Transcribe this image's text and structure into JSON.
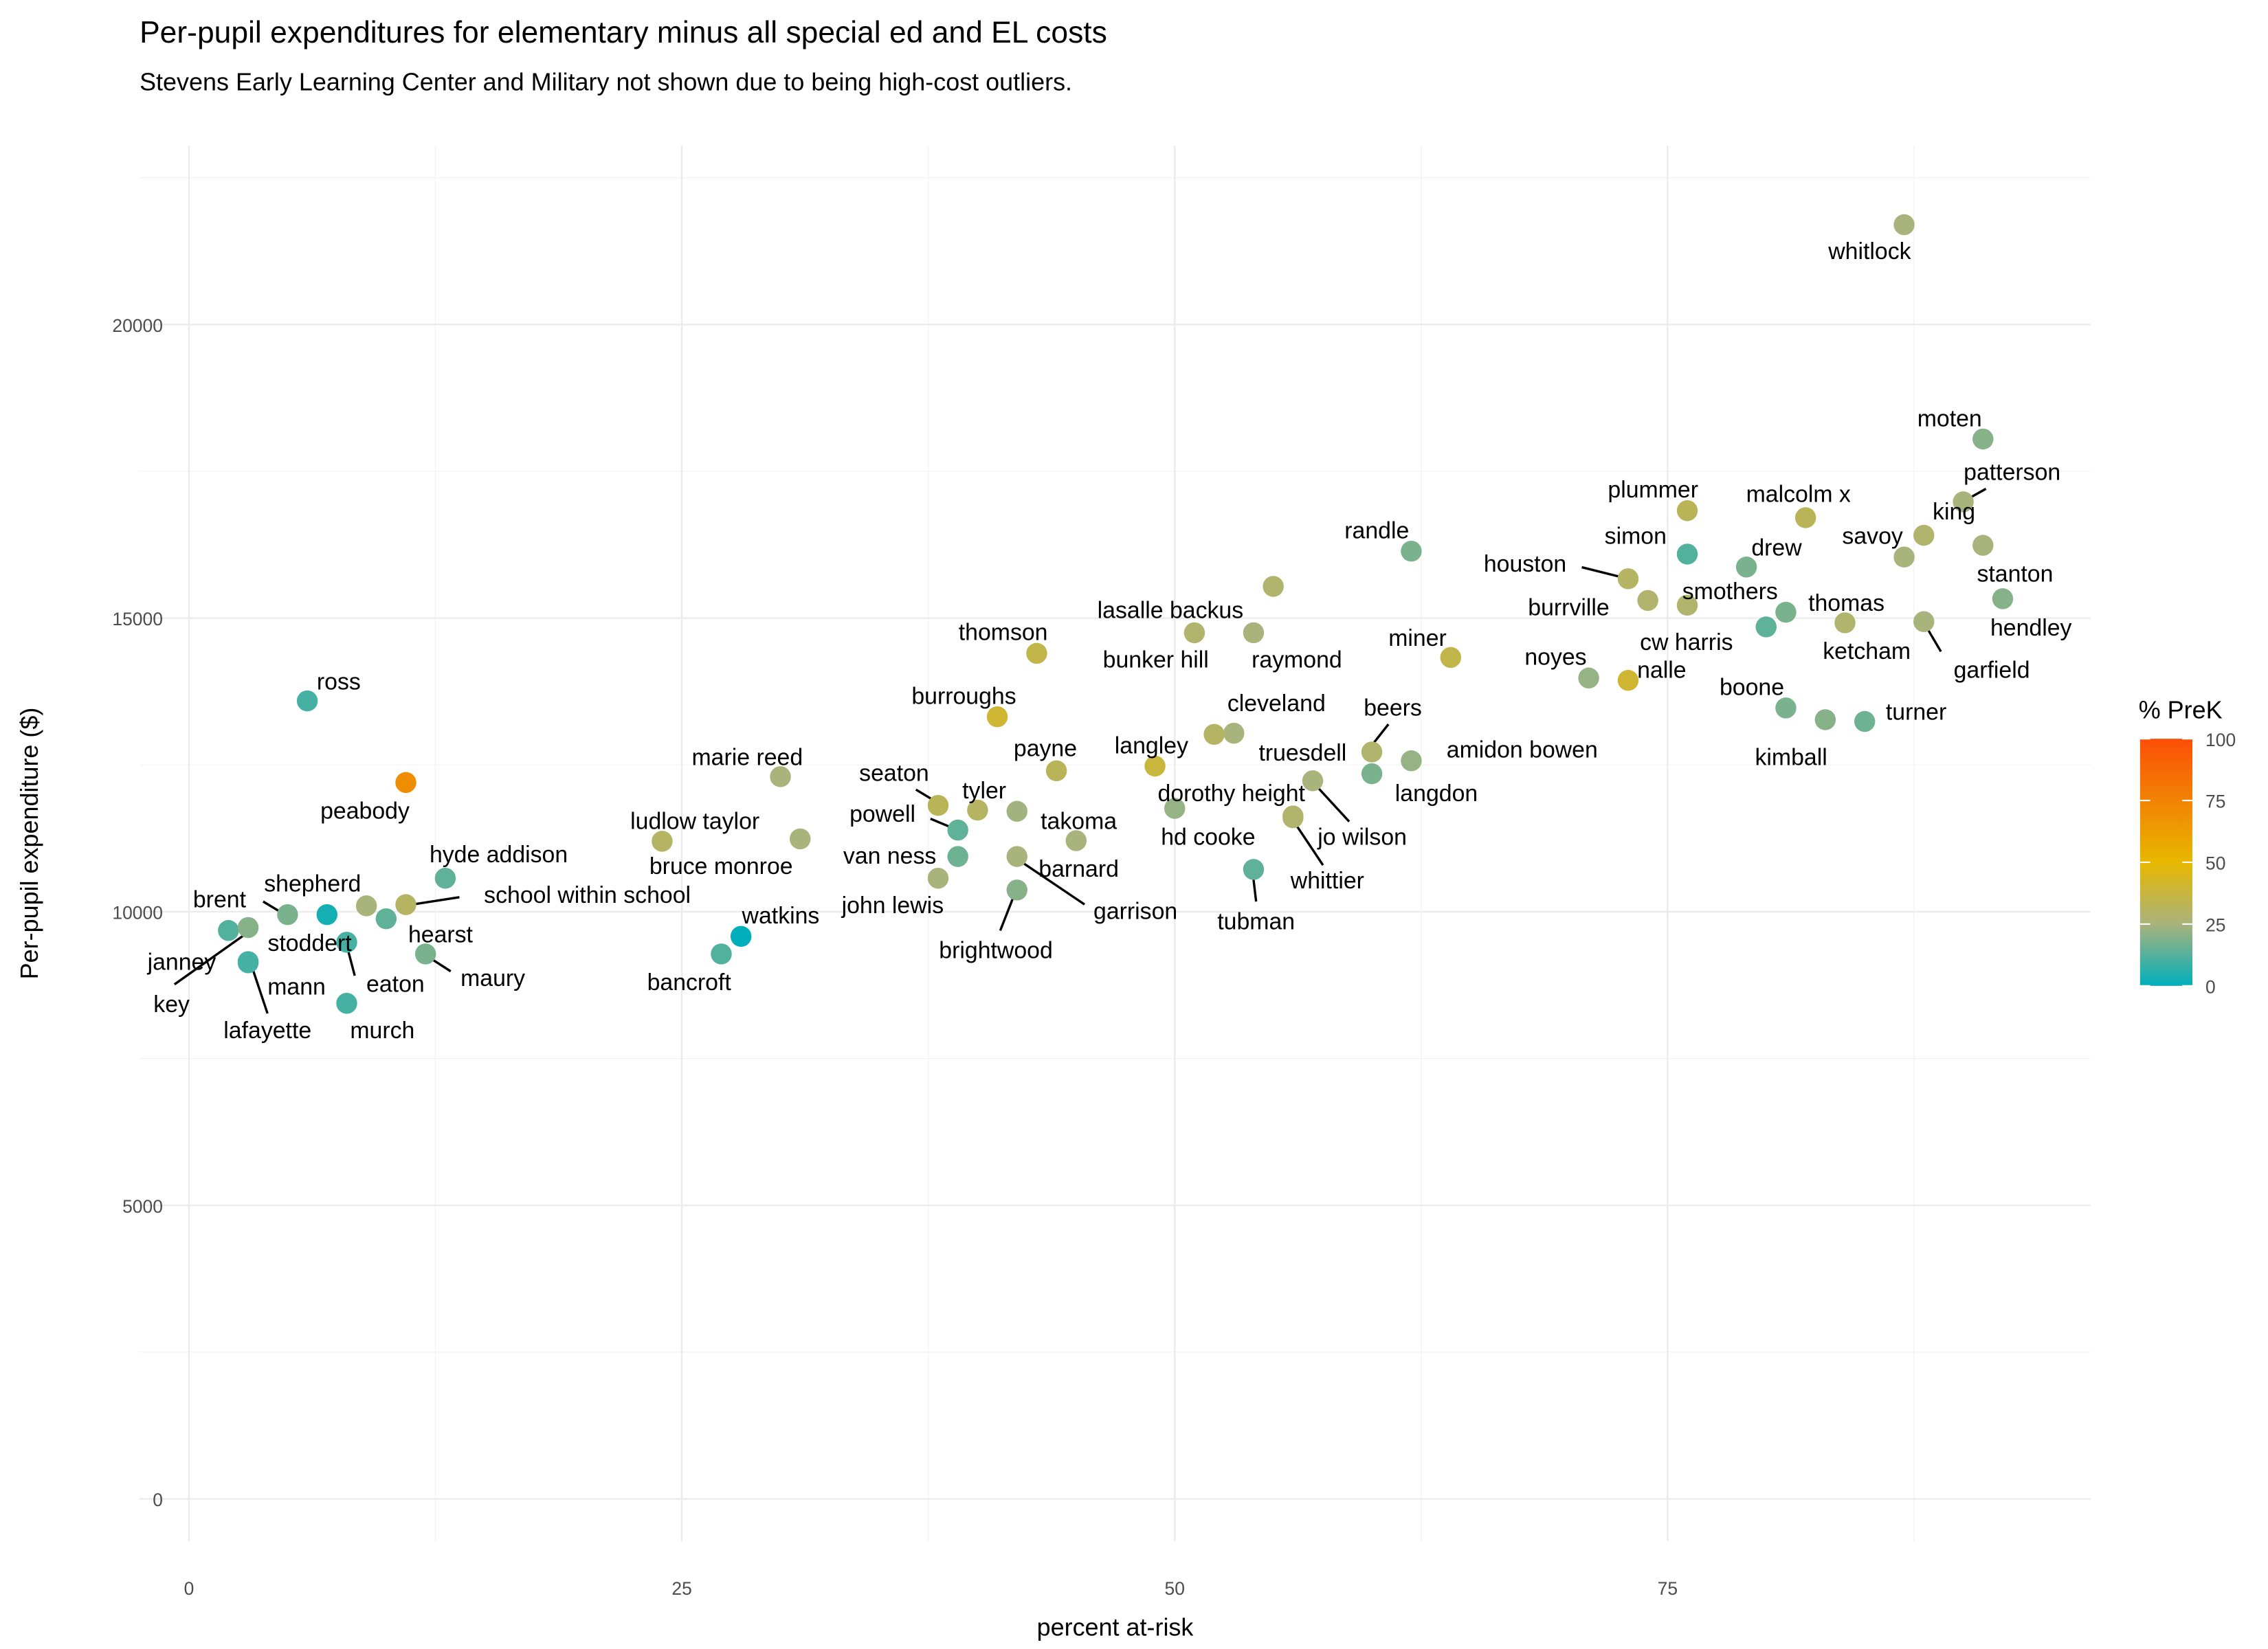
{
  "chart_data": {
    "type": "scatter",
    "title": "Per-pupil expenditures for elementary minus all special ed and EL costs",
    "subtitle": "Stevens Early Learning Center and Military not shown due to being high-cost outliers.",
    "xlabel": "percent at-risk",
    "ylabel": "Per-pupil expenditure ($)",
    "xlim": [
      -2.5,
      96.5
    ],
    "ylim": [
      -1000,
      22600
    ],
    "xticks": [
      0,
      25,
      50,
      75
    ],
    "yticks": [
      0,
      5000,
      10000,
      15000,
      20000
    ],
    "xtick_labels": [
      "0",
      "25",
      "50",
      "75"
    ],
    "ytick_labels": [
      "0",
      "5000",
      "10000",
      "15000",
      "20000"
    ],
    "grid": true,
    "legend": {
      "title": "% PreK",
      "placement": "right",
      "ticks": [
        "0",
        "25",
        "50",
        "75",
        "100"
      ],
      "range": [
        0,
        100
      ],
      "colors": [
        "#00AFBB",
        "#A9B37C",
        "#E7B800",
        "#FC4E07"
      ]
    },
    "points": [
      {
        "name": "whitlock",
        "x": 87,
        "y": 21700,
        "prek": 25
      },
      {
        "name": "moten",
        "x": 91,
        "y": 18050,
        "prek": 20
      },
      {
        "name": "patterson",
        "x": 90,
        "y": 16980,
        "prek": 25
      },
      {
        "name": "king",
        "x": 87,
        "y": 16040,
        "prek": 25
      },
      {
        "name": "savoy",
        "x": 88,
        "y": 16410,
        "prek": 28
      },
      {
        "name": "stanton",
        "x": 91,
        "y": 16240,
        "prek": 25
      },
      {
        "name": "hendley",
        "x": 92,
        "y": 15330,
        "prek": 20
      },
      {
        "name": "garfield",
        "x": 88,
        "y": 14940,
        "prek": 25
      },
      {
        "name": "ketcham",
        "x": 84,
        "y": 14920,
        "prek": 28
      },
      {
        "name": "plummer",
        "x": 76,
        "y": 16830,
        "prek": 32
      },
      {
        "name": "malcolm x",
        "x": 82,
        "y": 16710,
        "prek": 32
      },
      {
        "name": "randle",
        "x": 62,
        "y": 16140,
        "prek": 18
      },
      {
        "name": "simon",
        "x": 76,
        "y": 16090,
        "prek": 12
      },
      {
        "name": "drew",
        "x": 79,
        "y": 15870,
        "prek": 18
      },
      {
        "name": "houston",
        "x": 73,
        "y": 15670,
        "prek": 30
      },
      {
        "name": "burrville",
        "x": 74,
        "y": 15300,
        "prek": 28
      },
      {
        "name": "smothers",
        "x": 76,
        "y": 15220,
        "prek": 28
      },
      {
        "name": "thomas",
        "x": 81,
        "y": 15100,
        "prek": 18
      },
      {
        "name": "cw harris",
        "x": 80,
        "y": 14850,
        "prek": 14
      },
      {
        "name": "lasalle backus",
        "x": 55,
        "y": 15540,
        "prek": 28
      },
      {
        "name": "bunker hill",
        "x": 51,
        "y": 14750,
        "prek": 28
      },
      {
        "name": "raymond",
        "x": 54,
        "y": 14750,
        "prek": 25
      },
      {
        "name": "thomson",
        "x": 43,
        "y": 14400,
        "prek": 35
      },
      {
        "name": "miner",
        "x": 64,
        "y": 14330,
        "prek": 35
      },
      {
        "name": "noyes",
        "x": 71,
        "y": 13980,
        "prek": 22
      },
      {
        "name": "nalle",
        "x": 73,
        "y": 13940,
        "prek": 40
      },
      {
        "name": "boone",
        "x": 81,
        "y": 13470,
        "prek": 18
      },
      {
        "name": "kimball",
        "x": 83,
        "y": 13270,
        "prek": 20
      },
      {
        "name": "turner",
        "x": 85,
        "y": 13240,
        "prek": 16
      },
      {
        "name": "burroughs",
        "x": 41,
        "y": 13320,
        "prek": 40
      },
      {
        "name": "cleveland",
        "x": 53,
        "y": 13040,
        "prek": 25
      },
      {
        "name": "beers",
        "x": 60,
        "y": 12720,
        "prek": 28
      },
      {
        "name": "amidon bowen",
        "x": 62,
        "y": 12570,
        "prek": 22
      },
      {
        "name": "langdon",
        "x": 60,
        "y": 12350,
        "prek": 18
      },
      {
        "name": "truesdell",
        "x": 52,
        "y": 13020,
        "prek": 30
      },
      {
        "name": "langley",
        "x": 49,
        "y": 12480,
        "prek": 38
      },
      {
        "name": "payne",
        "x": 44,
        "y": 12400,
        "prek": 32
      },
      {
        "name": "marie reed",
        "x": 30,
        "y": 12300,
        "prek": 25
      },
      {
        "name": "peabody",
        "x": 11,
        "y": 12200,
        "prek": 70
      },
      {
        "name": "ross",
        "x": 6,
        "y": 13590,
        "prek": 10
      },
      {
        "name": "dorothy height",
        "x": 57,
        "y": 12230,
        "prek": 25
      },
      {
        "name": "hd cooke",
        "x": 50,
        "y": 11760,
        "prek": 22
      },
      {
        "name": "jo wilson",
        "x": 56,
        "y": 11630,
        "prek": 28
      },
      {
        "name": "whittier",
        "x": 56,
        "y": 11600,
        "prek": 28
      },
      {
        "name": "tubman",
        "x": 54,
        "y": 10720,
        "prek": 14
      },
      {
        "name": "seaton",
        "x": 38,
        "y": 11810,
        "prek": 32
      },
      {
        "name": "tyler",
        "x": 40,
        "y": 11730,
        "prek": 30
      },
      {
        "name": "takoma",
        "x": 42,
        "y": 11710,
        "prek": 24
      },
      {
        "name": "powell",
        "x": 39,
        "y": 11390,
        "prek": 14
      },
      {
        "name": "ludlow taylor",
        "x": 24,
        "y": 11200,
        "prek": 30
      },
      {
        "name": "bruce monroe",
        "x": 31,
        "y": 11240,
        "prek": 25
      },
      {
        "name": "barnard",
        "x": 45,
        "y": 11210,
        "prek": 25
      },
      {
        "name": "van ness",
        "x": 39,
        "y": 10940,
        "prek": 16
      },
      {
        "name": "garrison",
        "x": 42,
        "y": 10940,
        "prek": 25
      },
      {
        "name": "john lewis",
        "x": 38,
        "y": 10570,
        "prek": 25
      },
      {
        "name": "brightwood",
        "x": 42,
        "y": 10370,
        "prek": 20
      },
      {
        "name": "hyde addison",
        "x": 13,
        "y": 10570,
        "prek": 14
      },
      {
        "name": "school within school",
        "x": 11,
        "y": 10120,
        "prek": 30
      },
      {
        "name": "shepherd",
        "x": 9,
        "y": 10100,
        "prek": 25
      },
      {
        "name": "hearst",
        "x": 10,
        "y": 9880,
        "prek": 14
      },
      {
        "name": "brent",
        "x": 5,
        "y": 9950,
        "prek": 18
      },
      {
        "name": "stoddert",
        "x": 7,
        "y": 9950,
        "prek": 3
      },
      {
        "name": "janney",
        "x": 2,
        "y": 9680,
        "prek": 12
      },
      {
        "name": "key",
        "x": 3,
        "y": 9730,
        "prek": 20
      },
      {
        "name": "mann",
        "x": 3,
        "y": 9150,
        "prek": 10
      },
      {
        "name": "lafayette",
        "x": 3,
        "y": 9130,
        "prek": 10
      },
      {
        "name": "eaton",
        "x": 8,
        "y": 9480,
        "prek": 10
      },
      {
        "name": "maury",
        "x": 12,
        "y": 9280,
        "prek": 18
      },
      {
        "name": "murch",
        "x": 8,
        "y": 8440,
        "prek": 10
      },
      {
        "name": "watkins",
        "x": 28,
        "y": 9580,
        "prek": 0
      },
      {
        "name": "bancroft",
        "x": 27,
        "y": 9280,
        "prek": 12
      }
    ]
  }
}
